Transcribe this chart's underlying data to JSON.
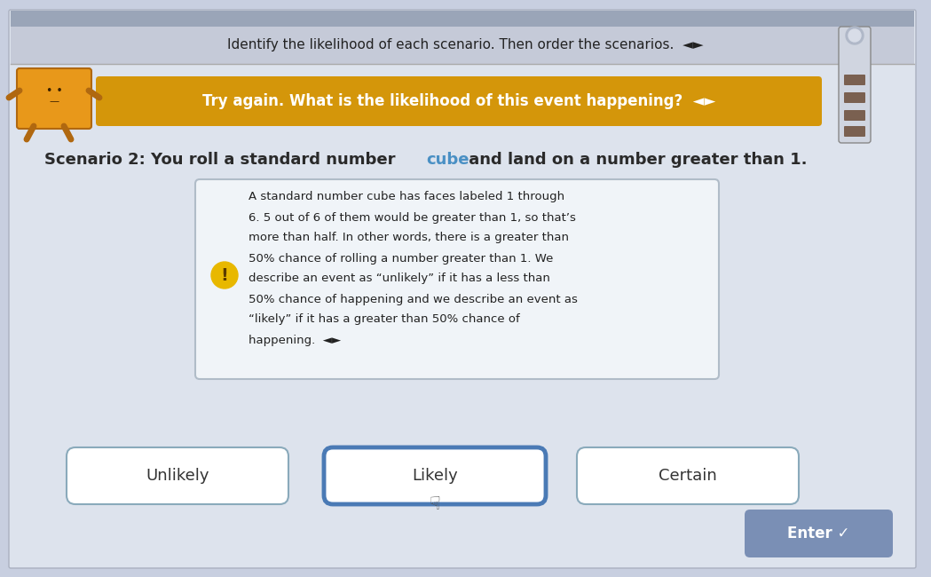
{
  "bg_top_color": "#c8cfe0",
  "bg_main_color": "#dde3ed",
  "top_bar_text": "Identify the likelihood of each scenario. Then order the scenarios.  ◄►",
  "banner_text": "Try again. What is the likelihood of this event happening?  ◄►",
  "banner_bg": "#d4960a",
  "banner_text_color": "#ffffff",
  "scenario_text_part1": "Scenario 2: You roll a standard number ",
  "scenario_text_cube": "cube",
  "scenario_text_part2": " and land on a number greater than 1.",
  "scenario_text_color": "#2a2a2a",
  "cube_color": "#4a90c4",
  "info_box_text_lines": [
    "A standard number cube has faces labeled 1 through",
    "6. 5 out of 6 of them would be greater than 1, so that’s",
    "more than half. In other words, there is a greater than",
    "50% chance of rolling a number greater than 1. We",
    "describe an event as “unlikely” if it has a less than",
    "50% chance of happening and we describe an event as",
    "“likely” if it has a greater than 50% chance of",
    "happening.  ◄►"
  ],
  "info_box_bg": "#f0f4f8",
  "info_box_border": "#b0bcc8",
  "button_unlikely_text": "Unlikely",
  "button_likely_text": "Likely",
  "button_certain_text": "Certain",
  "button_selected_border": "#4a7ab5",
  "button_normal_border": "#8aaabb",
  "button_bg": "#ffffff",
  "enter_button_text": "Enter ✓",
  "enter_button_bg": "#7a8fb5",
  "enter_button_text_color": "#ffffff"
}
